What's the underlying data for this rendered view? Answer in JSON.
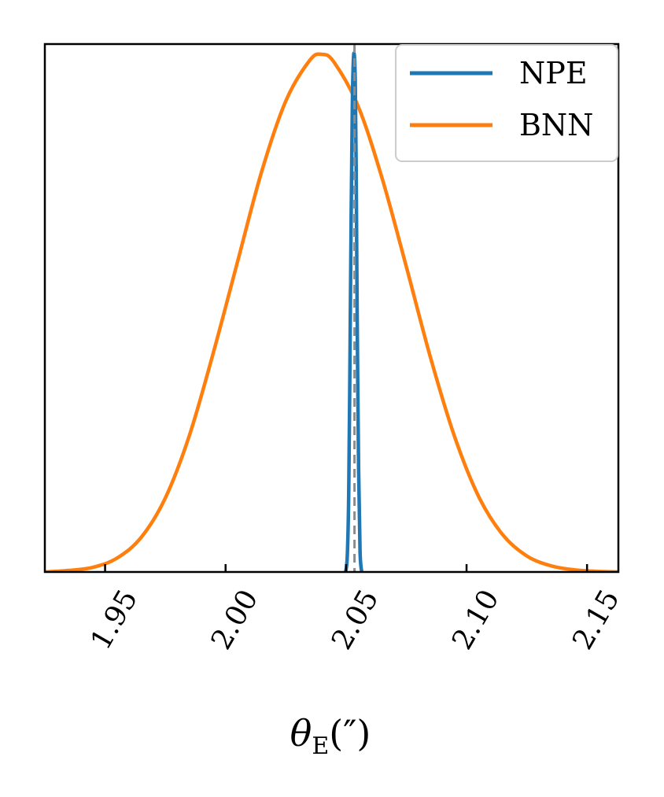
{
  "chart_data": {
    "type": "line",
    "xlabel": "θ_E(″)",
    "xlabel_parts": {
      "symbol": "θ",
      "subscript": "E",
      "unit": "(″)"
    },
    "ylabel": "",
    "xlim": [
      1.925,
      2.163
    ],
    "ylim": [
      0,
      1.02
    ],
    "xticks": [
      1.95,
      2.0,
      2.05,
      2.1,
      2.15
    ],
    "xtick_labels": [
      "1.95",
      "2.00",
      "2.05",
      "2.10",
      "2.15"
    ],
    "yticks": [],
    "grid": false,
    "legend_position": "top-right",
    "reference_line": {
      "x": 2.0535,
      "style": "dashed",
      "color": "#8c8c8c"
    },
    "series": [
      {
        "name": "NPE",
        "color": "#1f77b4",
        "x": [
          2.0498,
          2.0505,
          2.0511,
          2.0516,
          2.0521,
          2.0526,
          2.053,
          2.0534,
          2.0538,
          2.0542,
          2.0546,
          2.0552,
          2.0558,
          2.0565
        ],
        "y": [
          0.0,
          0.03,
          0.15,
          0.4,
          0.68,
          0.9,
          0.985,
          1.0,
          0.95,
          0.78,
          0.5,
          0.2,
          0.04,
          0.0
        ]
      },
      {
        "name": "BNN",
        "color": "#ff7f0e",
        "x": [
          1.925,
          1.935,
          1.945,
          1.955,
          1.965,
          1.975,
          1.985,
          1.995,
          2.005,
          2.015,
          2.025,
          2.035,
          2.04,
          2.045,
          2.055,
          2.065,
          2.075,
          2.085,
          2.095,
          2.105,
          2.115,
          2.125,
          2.135,
          2.145,
          2.155,
          2.163
        ],
        "y": [
          0.0,
          0.003,
          0.009,
          0.027,
          0.067,
          0.143,
          0.264,
          0.425,
          0.6,
          0.774,
          0.91,
          0.989,
          1.0,
          0.985,
          0.9,
          0.76,
          0.59,
          0.415,
          0.262,
          0.146,
          0.072,
          0.031,
          0.012,
          0.004,
          0.001,
          0.0
        ]
      }
    ]
  }
}
